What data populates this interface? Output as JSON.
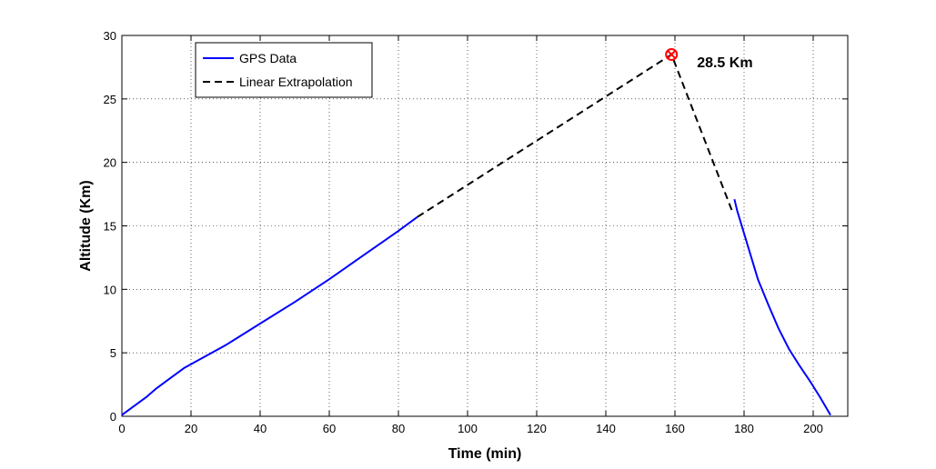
{
  "chart_data": {
    "type": "line",
    "title": "",
    "xlabel": "Time (min)",
    "ylabel": "Altitude (Km)",
    "xlim": [
      0,
      210
    ],
    "ylim": [
      0,
      30
    ],
    "xticks": [
      0,
      20,
      40,
      60,
      80,
      100,
      120,
      140,
      160,
      180,
      200
    ],
    "yticks": [
      0,
      5,
      10,
      15,
      20,
      25,
      30
    ],
    "grid": true,
    "legend_position": "top-left",
    "series": [
      {
        "name": "GPS Data",
        "style": "solid",
        "color": "#0000ff",
        "segments": [
          {
            "x": [
              0,
              3,
              7,
              10,
              14,
              18,
              22,
              30,
              40,
              50,
              60,
              70,
              80,
              85.5
            ],
            "y": [
              0.1,
              0.7,
              1.5,
              2.2,
              3.0,
              3.8,
              4.4,
              5.6,
              7.3,
              9.0,
              10.8,
              12.7,
              14.6,
              15.7
            ]
          },
          {
            "x": [
              177.2,
              178,
              181,
              184,
              187,
              190,
              193,
              196,
              199,
              202,
              205
            ],
            "y": [
              17.1,
              16.2,
              13.5,
              10.8,
              8.8,
              6.9,
              5.3,
              4.0,
              2.8,
              1.5,
              0.1
            ]
          }
        ]
      },
      {
        "name": "Linear Extrapolation",
        "style": "dashed",
        "color": "#000000",
        "x": [
          85.5,
          159,
          176.5
        ],
        "y": [
          15.7,
          28.5,
          16.2
        ]
      }
    ],
    "annotations": [
      {
        "type": "marker",
        "x": 159,
        "y": 28.5,
        "color": "#ff0000",
        "label": "28.5 Km"
      }
    ]
  }
}
